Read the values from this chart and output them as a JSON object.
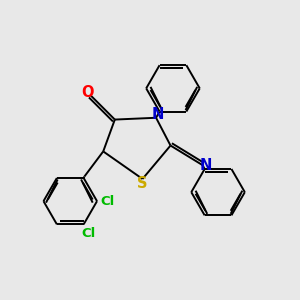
{
  "bg_color": "#e8e8e8",
  "atom_colors": {
    "N": "#0000cc",
    "O": "#ff0000",
    "S": "#ccaa00",
    "Cl": "#00bb00"
  },
  "line_color": "#000000",
  "line_width": 1.4,
  "font_size": 10.5
}
